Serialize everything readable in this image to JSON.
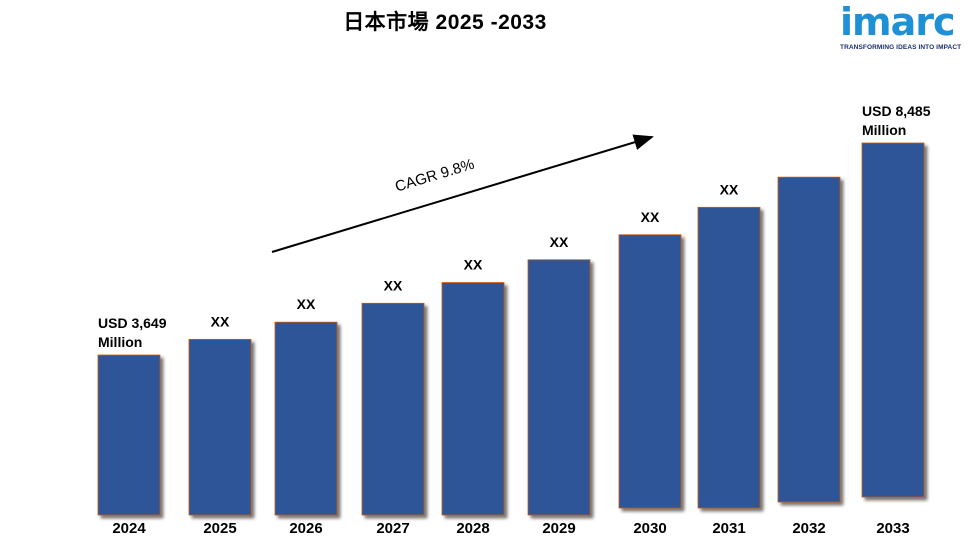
{
  "title": "日本市場  2025 -2033",
  "logo": {
    "wordmark": "imarc",
    "tagline": "TRANSFORMING IDEAS INTO IMPACT"
  },
  "colors": {
    "bar": "#2e5597",
    "bar_edge": "#c55a11",
    "logo": "#1e90d6",
    "tagline": "#1a2e6b"
  },
  "chart_data": {
    "type": "bar",
    "categories": [
      "2024",
      "2025",
      "2026",
      "2027",
      "2028",
      "2029",
      "2030",
      "2031",
      "2032",
      "2033"
    ],
    "values": [
      3649,
      4006,
      4398,
      4829,
      5302,
      5822,
      6392,
      7018,
      7706,
      8485
    ],
    "data_labels": [
      "USD 3,649 Million",
      "XX",
      "XX",
      "XX",
      "XX",
      "XX",
      "XX",
      "XX",
      "",
      "USD 8,485 Million"
    ],
    "annotation": "CAGR 9.8%",
    "ylim": [
      0,
      9000
    ],
    "grid": false,
    "legend": "none"
  }
}
